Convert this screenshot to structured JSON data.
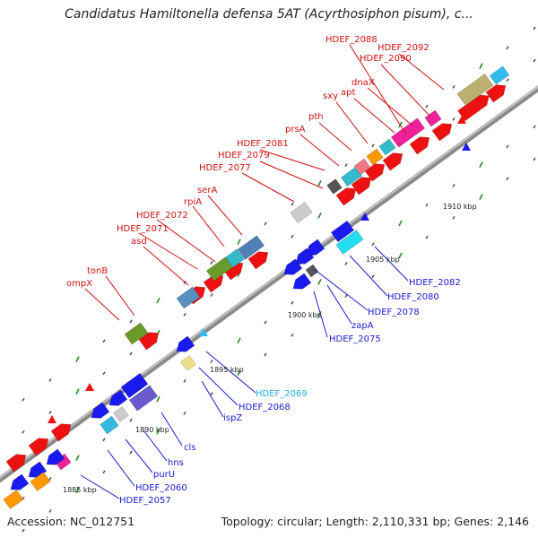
{
  "title": "Candidatus Hamiltonella defensa 5AT (Acyrthosiphon pisum), c...",
  "footer": {
    "accession": "Accession: NC_012751",
    "topology": "Topology: circular; Length: 2,110,331 bp; Genes: 2,146"
  },
  "scale_labels": [
    "1885 kbp",
    "1890 kbp",
    "1895 kbp",
    "1900 kbp",
    "1905 kbp",
    "1910 kbp"
  ],
  "colors": {
    "red_label": "#cc1111",
    "blue_label": "#1a1acc",
    "cyan_label": "#22aadd",
    "backbone": "#999999",
    "tick": "#2a8a2a"
  },
  "top_labels": [
    "HDEF_2088",
    "HDEF_2092",
    "HDEF_2090",
    "dnaX",
    "apt",
    "sxy",
    "pth",
    "prsA",
    "HDEF_2081",
    "HDEF_2079",
    "HDEF_2077",
    "serA",
    "rpiA",
    "HDEF_2072",
    "HDEF_2071",
    "asd",
    "tonB",
    "ompX"
  ],
  "bottom_labels": [
    "HDEF_2082",
    "HDEF_2080",
    "HDEF_2078",
    "zapA",
    "HDEF_2075",
    "HDEF_2069",
    "HDEF_2068",
    "ispZ",
    "cls",
    "hns",
    "purU",
    "HDEF_2060",
    "HDEF_2057"
  ]
}
